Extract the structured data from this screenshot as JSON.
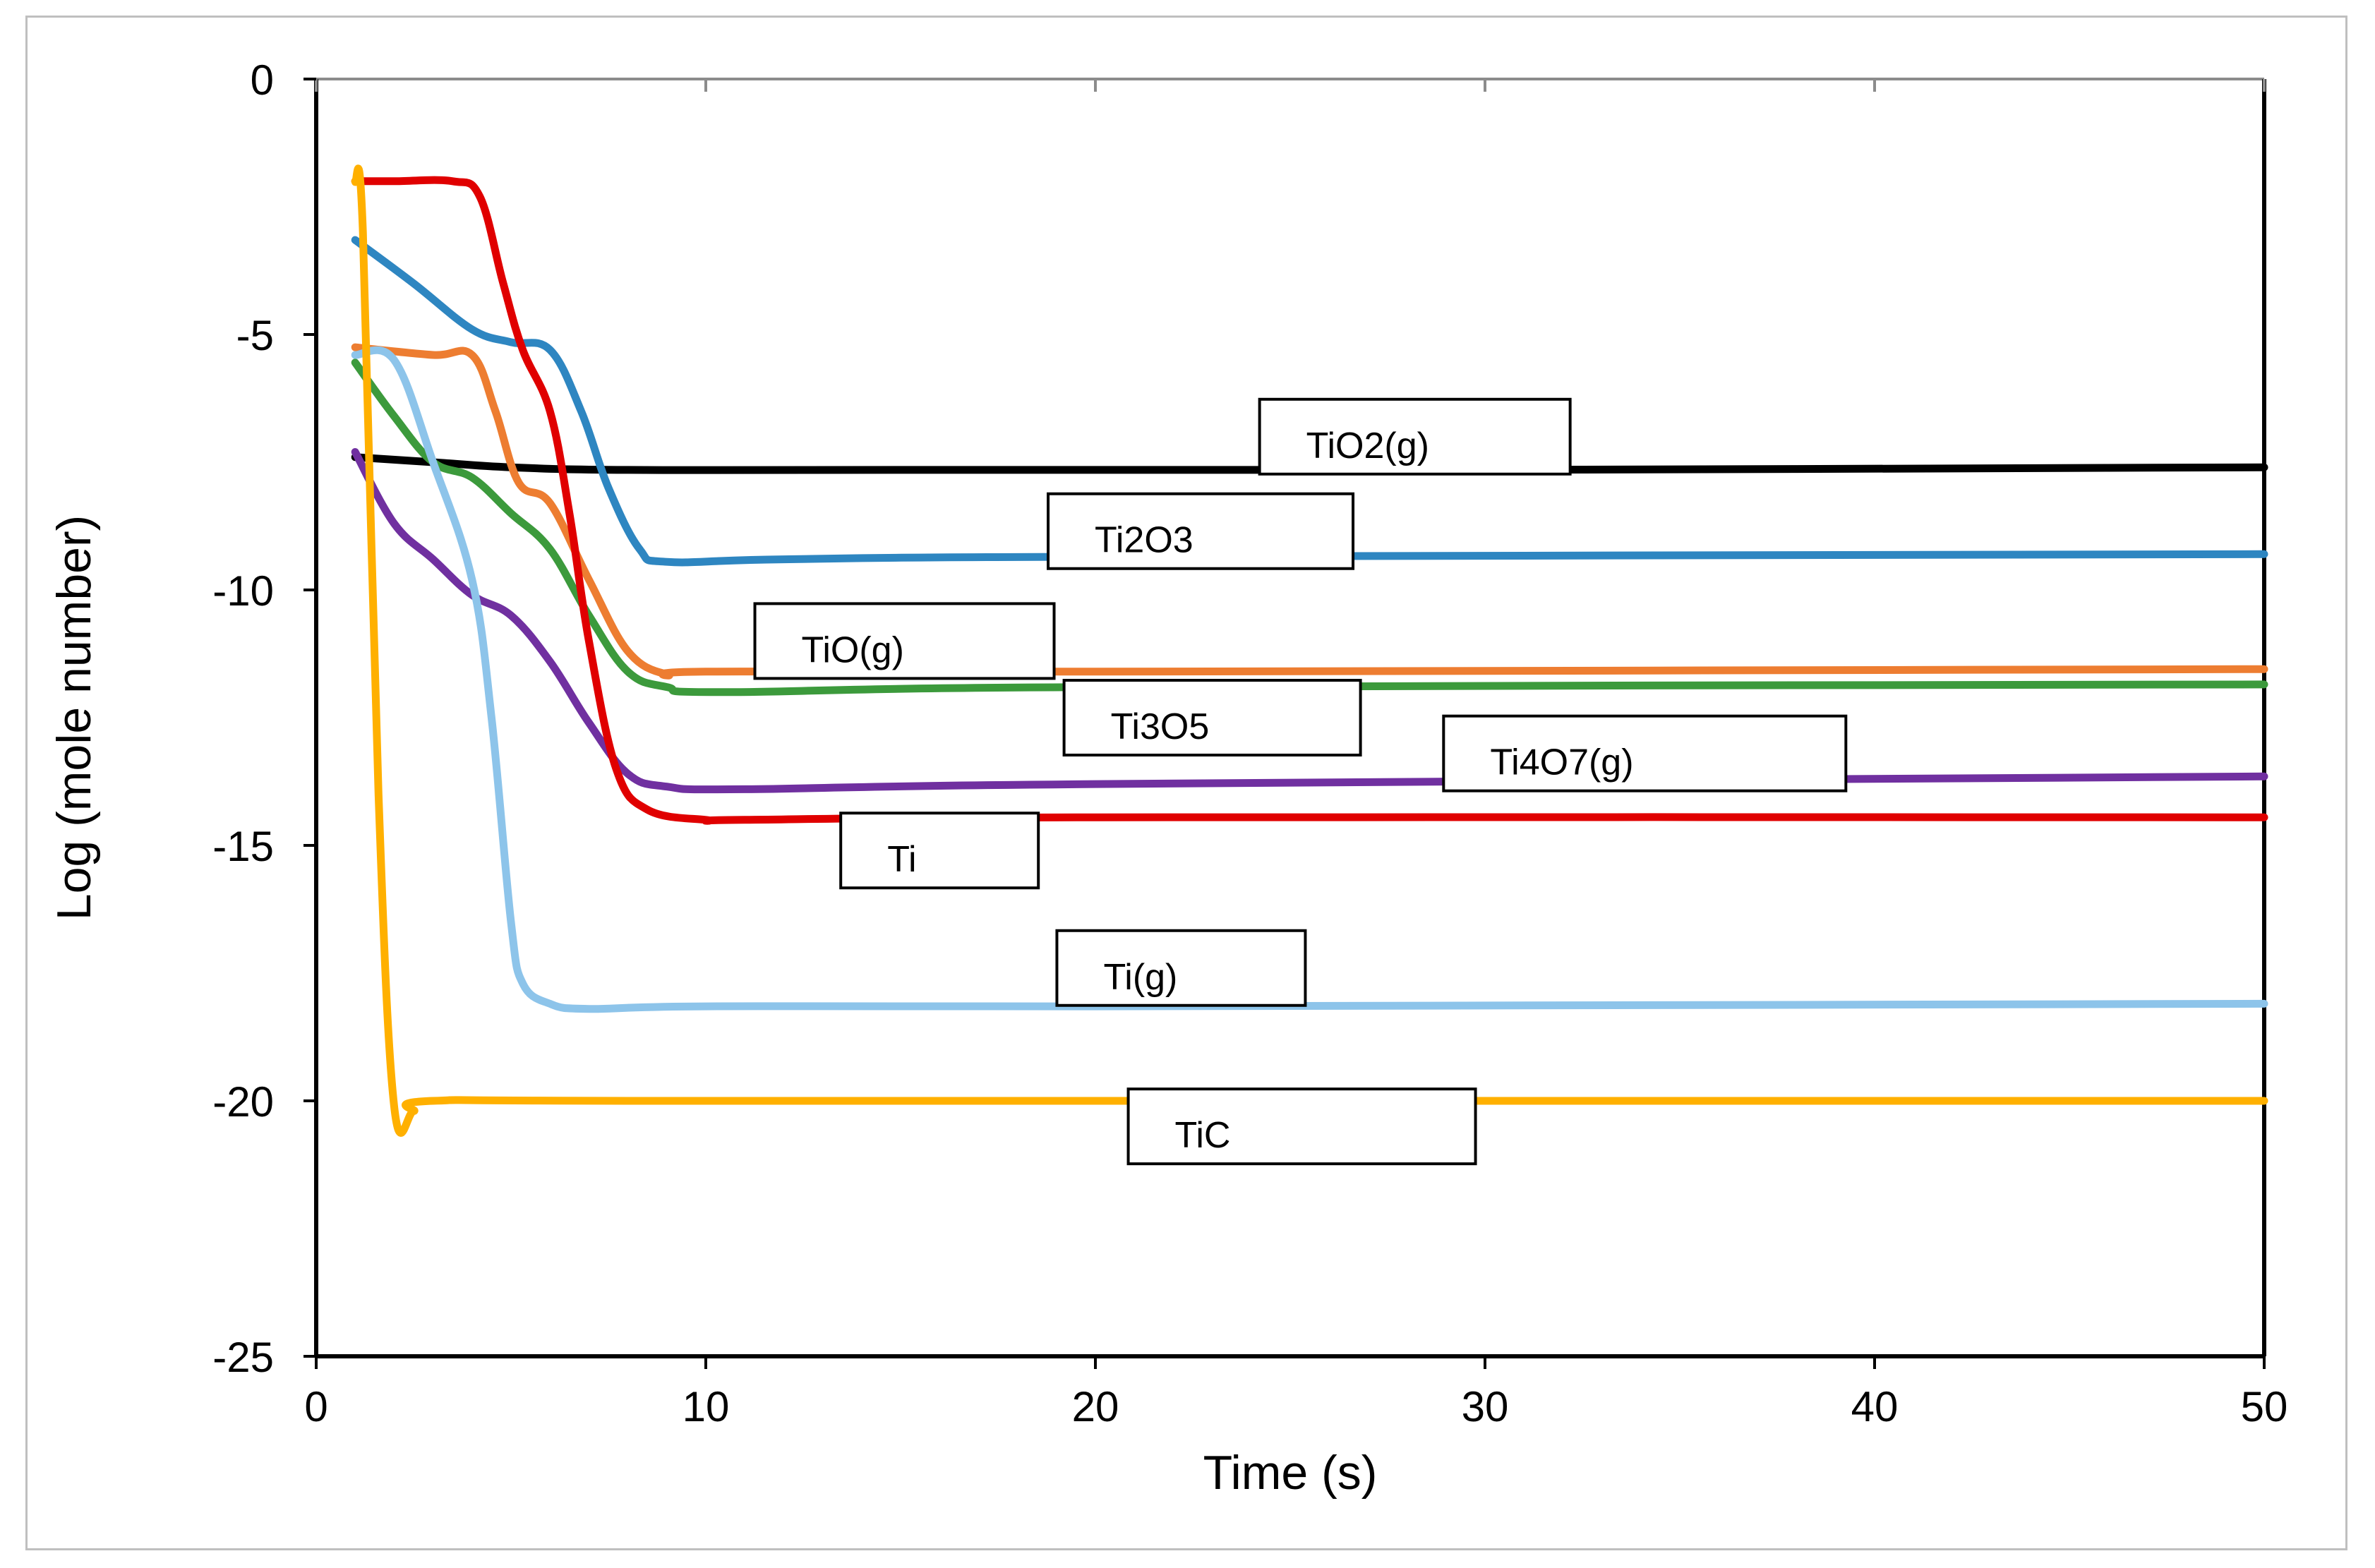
{
  "chart_data": {
    "type": "line",
    "title": "",
    "xlabel": "Time (s)",
    "ylabel": "Log (mole number)",
    "xlim": [
      0,
      50
    ],
    "ylim": [
      -25,
      0
    ],
    "xticks": [
      0,
      10,
      20,
      30,
      40,
      50
    ],
    "yticks": [
      0,
      -5,
      -10,
      -15,
      -20,
      -25
    ],
    "grid": false,
    "series": [
      {
        "name": "TiO2(g)",
        "color": "#000000",
        "points": [
          [
            1,
            -7.4
          ],
          [
            3,
            -7.5
          ],
          [
            5,
            -7.6
          ],
          [
            8,
            -7.65
          ],
          [
            15,
            -7.65
          ],
          [
            30,
            -7.65
          ],
          [
            50,
            -7.6
          ]
        ]
      },
      {
        "name": "Ti2O3",
        "color": "#2e86c1",
        "points": [
          [
            1,
            -3.15
          ],
          [
            2.5,
            -4.0
          ],
          [
            4,
            -4.9
          ],
          [
            5,
            -5.15
          ],
          [
            6,
            -5.3
          ],
          [
            6.8,
            -6.5
          ],
          [
            7.5,
            -8.0
          ],
          [
            8.3,
            -9.2
          ],
          [
            9,
            -9.45
          ],
          [
            12,
            -9.4
          ],
          [
            20,
            -9.35
          ],
          [
            50,
            -9.3
          ]
        ]
      },
      {
        "name": "TiO(g)",
        "color": "#ed7d31",
        "points": [
          [
            1,
            -5.25
          ],
          [
            3,
            -5.4
          ],
          [
            4,
            -5.4
          ],
          [
            4.6,
            -6.5
          ],
          [
            5.2,
            -7.9
          ],
          [
            6,
            -8.3
          ],
          [
            7,
            -9.8
          ],
          [
            8,
            -11.2
          ],
          [
            9,
            -11.65
          ],
          [
            10,
            -11.6
          ],
          [
            20,
            -11.6
          ],
          [
            50,
            -11.55
          ]
        ]
      },
      {
        "name": "Ti3O5",
        "color": "#3c9a3c",
        "points": [
          [
            1,
            -5.55
          ],
          [
            2,
            -6.6
          ],
          [
            3,
            -7.5
          ],
          [
            4,
            -7.8
          ],
          [
            5,
            -8.5
          ],
          [
            6,
            -9.2
          ],
          [
            7,
            -10.5
          ],
          [
            8,
            -11.6
          ],
          [
            9,
            -11.9
          ],
          [
            10.5,
            -12.0
          ],
          [
            20,
            -11.9
          ],
          [
            50,
            -11.85
          ]
        ]
      },
      {
        "name": "Ti4O7(g)",
        "color": "#7030a0",
        "points": [
          [
            1,
            -7.3
          ],
          [
            2,
            -8.7
          ],
          [
            3,
            -9.4
          ],
          [
            4,
            -10.1
          ],
          [
            5,
            -10.5
          ],
          [
            6,
            -11.4
          ],
          [
            7,
            -12.6
          ],
          [
            8,
            -13.6
          ],
          [
            9,
            -13.85
          ],
          [
            11,
            -13.9
          ],
          [
            20,
            -13.8
          ],
          [
            50,
            -13.65
          ]
        ]
      },
      {
        "name": "Ti",
        "color": "#e00000",
        "points": [
          [
            1,
            -2.0
          ],
          [
            2,
            -2.0
          ],
          [
            3.5,
            -2.0
          ],
          [
            4.2,
            -2.3
          ],
          [
            4.8,
            -4.0
          ],
          [
            5.3,
            -5.3
          ],
          [
            6,
            -6.5
          ],
          [
            6.5,
            -8.5
          ],
          [
            7,
            -11.0
          ],
          [
            7.7,
            -13.5
          ],
          [
            8.5,
            -14.3
          ],
          [
            10,
            -14.5
          ],
          [
            11,
            -14.5
          ],
          [
            20,
            -14.45
          ],
          [
            50,
            -14.45
          ]
        ]
      },
      {
        "name": "Ti(g)",
        "color": "#8dc4ea",
        "points": [
          [
            1,
            -5.4
          ],
          [
            2,
            -5.5
          ],
          [
            3,
            -7.5
          ],
          [
            4,
            -9.8
          ],
          [
            4.5,
            -12.5
          ],
          [
            5,
            -16.5
          ],
          [
            5.3,
            -17.7
          ],
          [
            6,
            -18.1
          ],
          [
            7,
            -18.2
          ],
          [
            10,
            -18.15
          ],
          [
            20,
            -18.15
          ],
          [
            50,
            -18.1
          ]
        ]
      },
      {
        "name": "TiC",
        "color": "#ffb000",
        "points": [
          [
            1,
            -2.0
          ],
          [
            1.2,
            -3.0
          ],
          [
            1.6,
            -14.0
          ],
          [
            2.0,
            -20.1
          ],
          [
            2.5,
            -20.2
          ],
          [
            3,
            -20.0
          ],
          [
            10,
            -20.0
          ],
          [
            50,
            -20.0
          ]
        ]
      }
    ],
    "annotations": [
      {
        "text": "TiO2(g)",
        "series": "TiO2(g)",
        "x": 28.2,
        "y": -7.0
      },
      {
        "text": "Ti2O3",
        "series": "Ti2O3",
        "x": 22.7,
        "y": -8.85
      },
      {
        "text": "TiO(g)",
        "series": "TiO(g)",
        "x": 15.1,
        "y": -11.0
      },
      {
        "text": "Ti3O5",
        "series": "Ti3O5",
        "x": 23.0,
        "y": -12.5
      },
      {
        "text": "Ti4O7(g)",
        "series": "Ti4O7(g)",
        "x": 34.1,
        "y": -13.2
      },
      {
        "text": "Ti",
        "series": "Ti",
        "x": 16.0,
        "y": -15.1
      },
      {
        "text": "Ti(g)",
        "series": "Ti(g)",
        "x": 22.2,
        "y": -17.4
      },
      {
        "text": "TiC",
        "series": "TiC",
        "x": 25.3,
        "y": -20.5
      }
    ]
  }
}
